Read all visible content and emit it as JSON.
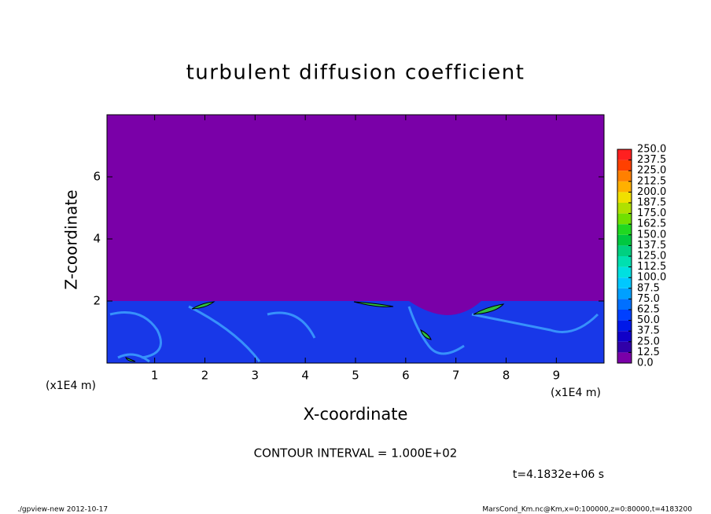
{
  "chart_data": {
    "type": "contour",
    "title": "turbulent diffusion coefficient",
    "xlabel": "X-coordinate",
    "ylabel": "Z-coordinate",
    "x_unit": "(x1E4 m)",
    "xlim": [
      0.05,
      9.95
    ],
    "ylim": [
      0,
      8
    ],
    "xticks": [
      1,
      2,
      3,
      4,
      5,
      6,
      7,
      8,
      9
    ],
    "yticks": [
      2,
      4,
      6
    ],
    "levels": [
      {
        "value": 0,
        "label": "0.0"
      },
      {
        "value": 12.5,
        "label": "12.5"
      },
      {
        "value": 25,
        "label": "25.0"
      },
      {
        "value": 37.5,
        "label": "37.5"
      },
      {
        "value": 50,
        "label": "50.0"
      },
      {
        "value": 62.5,
        "label": "62.5"
      },
      {
        "value": 75,
        "label": "75.0"
      },
      {
        "value": 87.5,
        "label": "87.5"
      },
      {
        "value": 100,
        "label": "100.0"
      },
      {
        "value": 112.5,
        "label": "112.5"
      },
      {
        "value": 125,
        "label": "125.0"
      },
      {
        "value": 137.5,
        "label": "137.5"
      },
      {
        "value": 150,
        "label": "150.0"
      },
      {
        "value": 162.5,
        "label": "162.5"
      },
      {
        "value": 175,
        "label": "175.0"
      },
      {
        "value": 187.5,
        "label": "187.5"
      },
      {
        "value": 200,
        "label": "200.0"
      },
      {
        "value": 212.5,
        "label": "212.5"
      },
      {
        "value": 225,
        "label": "225.0"
      },
      {
        "value": 237.5,
        "label": "237.5"
      },
      {
        "value": 250,
        "label": "250.0"
      }
    ],
    "colors": [
      "#7a00a8",
      "#3000a8",
      "#1000c8",
      "#0018e8",
      "#0040ff",
      "#0070ff",
      "#00a0ff",
      "#00c8ff",
      "#00e0e0",
      "#00e0b0",
      "#00d080",
      "#00c840",
      "#20d820",
      "#70e000",
      "#b0e000",
      "#f0e000",
      "#ffb000",
      "#ff8000",
      "#ff4000",
      "#ff2020",
      "#ff8080"
    ],
    "contour_interval": "CONTOUR INTERVAL = 1.000E+02",
    "time": "t=4.1832e+06 s",
    "footer_left": "./gpview-new  2012-10-17",
    "footer_right": "MarsCond_Km.nc@Km,x=0:100000,z=0:80000,t=4183200"
  }
}
